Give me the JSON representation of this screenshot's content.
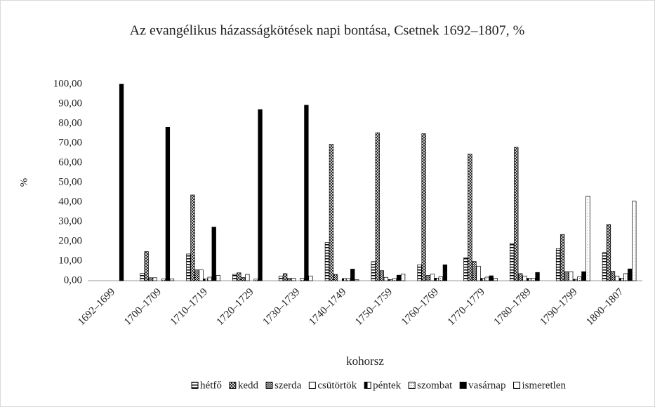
{
  "chart_data": {
    "type": "bar",
    "title": "Az evangélikus házasságkötések napi bontása, Csetnek 1692–1807, %",
    "x_label": "kohorsz",
    "y_label": "%",
    "categories": [
      "1692–1699",
      "1700–1709",
      "1710–1719",
      "1720–1729",
      "1730–1739",
      "1740–1749",
      "1750–1759",
      "1760–1769",
      "1770–1779",
      "1780–1789",
      "1790–1799",
      "1800–1807"
    ],
    "series": [
      {
        "name": "hétfő",
        "color": "#000000",
        "pattern": "hstripe",
        "values": [
          0,
          3.7,
          13.6,
          3.2,
          2.4,
          19.4,
          9.7,
          8.1,
          11.7,
          19.0,
          16.3,
          14.3
        ]
      },
      {
        "name": "kedd",
        "color": "#000000",
        "pattern": "cross",
        "values": [
          0,
          14.8,
          43.6,
          4.0,
          3.6,
          69.4,
          75.3,
          74.8,
          64.4,
          67.9,
          23.5,
          28.6
        ]
      },
      {
        "name": "szerda",
        "color": "#000000",
        "pattern": "checker",
        "values": [
          0,
          1.5,
          5.5,
          1.6,
          1.2,
          3.2,
          5.1,
          2.7,
          9.8,
          3.6,
          4.6,
          4.8
        ]
      },
      {
        "name": "csütörtök",
        "color": "#000000",
        "pattern": "blank",
        "values": [
          0,
          1.5,
          5.5,
          3.2,
          1.2,
          0,
          1.7,
          3.4,
          7.4,
          2.4,
          4.6,
          2.4
        ]
      },
      {
        "name": "péntek",
        "color": "#000000",
        "pattern": "halfleft",
        "values": [
          0,
          0,
          0.9,
          0,
          0,
          1.1,
          0.6,
          1.3,
          1.2,
          1.2,
          0.7,
          1.2
        ]
      },
      {
        "name": "szombat",
        "color": "#000000",
        "pattern": "dots",
        "values": [
          0,
          0.9,
          1.8,
          0.8,
          1.2,
          1.1,
          1.1,
          2.0,
          1.8,
          1.2,
          2.0,
          3.6
        ]
      },
      {
        "name": "vasárnap",
        "color": "#000000",
        "pattern": "solid",
        "values": [
          100,
          78.1,
          27.3,
          87.1,
          89.3,
          5.9,
          2.8,
          8.1,
          2.5,
          4.2,
          4.6,
          6.0
        ]
      },
      {
        "name": "ismeretlen",
        "color": "#000000",
        "pattern": "fine",
        "values": [
          0,
          0.9,
          2.7,
          0,
          2.4,
          0.5,
          3.4,
          0,
          1.2,
          0,
          43.1,
          40.5
        ]
      }
    ],
    "ylim": [
      0,
      100
    ],
    "yticks": [
      {
        "value": 0,
        "label": "0,00"
      },
      {
        "value": 10,
        "label": "10,00"
      },
      {
        "value": 20,
        "label": "20,00"
      },
      {
        "value": 30,
        "label": "30,00"
      },
      {
        "value": 40,
        "label": "40,00"
      },
      {
        "value": 50,
        "label": "50,00"
      },
      {
        "value": 60,
        "label": "60,00"
      },
      {
        "value": 70,
        "label": "70,00"
      },
      {
        "value": 80,
        "label": "80,00"
      },
      {
        "value": 90,
        "label": "90,00"
      },
      {
        "value": 100,
        "label": "100,00"
      }
    ],
    "grid": false,
    "legend": "bottom"
  }
}
